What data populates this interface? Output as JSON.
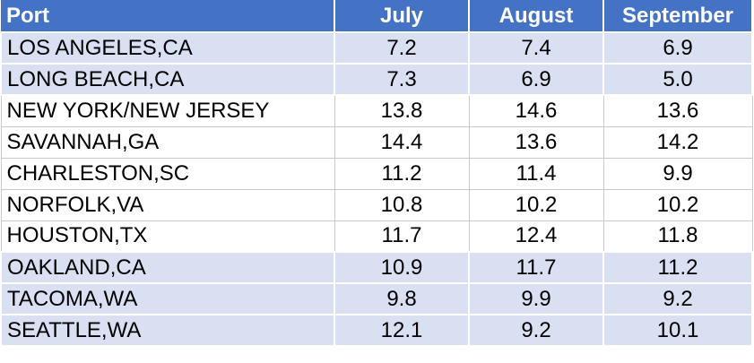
{
  "table": {
    "columns": [
      "Port",
      "July",
      "August",
      "September"
    ],
    "rows": [
      [
        "LOS ANGELES,CA",
        "7.2",
        "7.4",
        "6.9"
      ],
      [
        "LONG BEACH,CA",
        "7.3",
        "6.9",
        "5.0"
      ],
      [
        "NEW YORK/NEW JERSEY",
        "13.8",
        "14.6",
        "13.6"
      ],
      [
        "SAVANNAH,GA",
        "14.4",
        "13.6",
        "14.2"
      ],
      [
        "CHARLESTON,SC",
        "11.2",
        "11.4",
        "9.9"
      ],
      [
        "NORFOLK,VA",
        "10.8",
        "10.2",
        "10.2"
      ],
      [
        "HOUSTON,TX",
        "11.7",
        "12.4",
        "11.8"
      ],
      [
        "OAKLAND,CA",
        "10.9",
        "11.7",
        "11.2"
      ],
      [
        "TACOMA,WA",
        "9.8",
        "9.9",
        "9.2"
      ],
      [
        "SEATTLE,WA",
        "12.1",
        "9.2",
        "10.1"
      ]
    ]
  }
}
